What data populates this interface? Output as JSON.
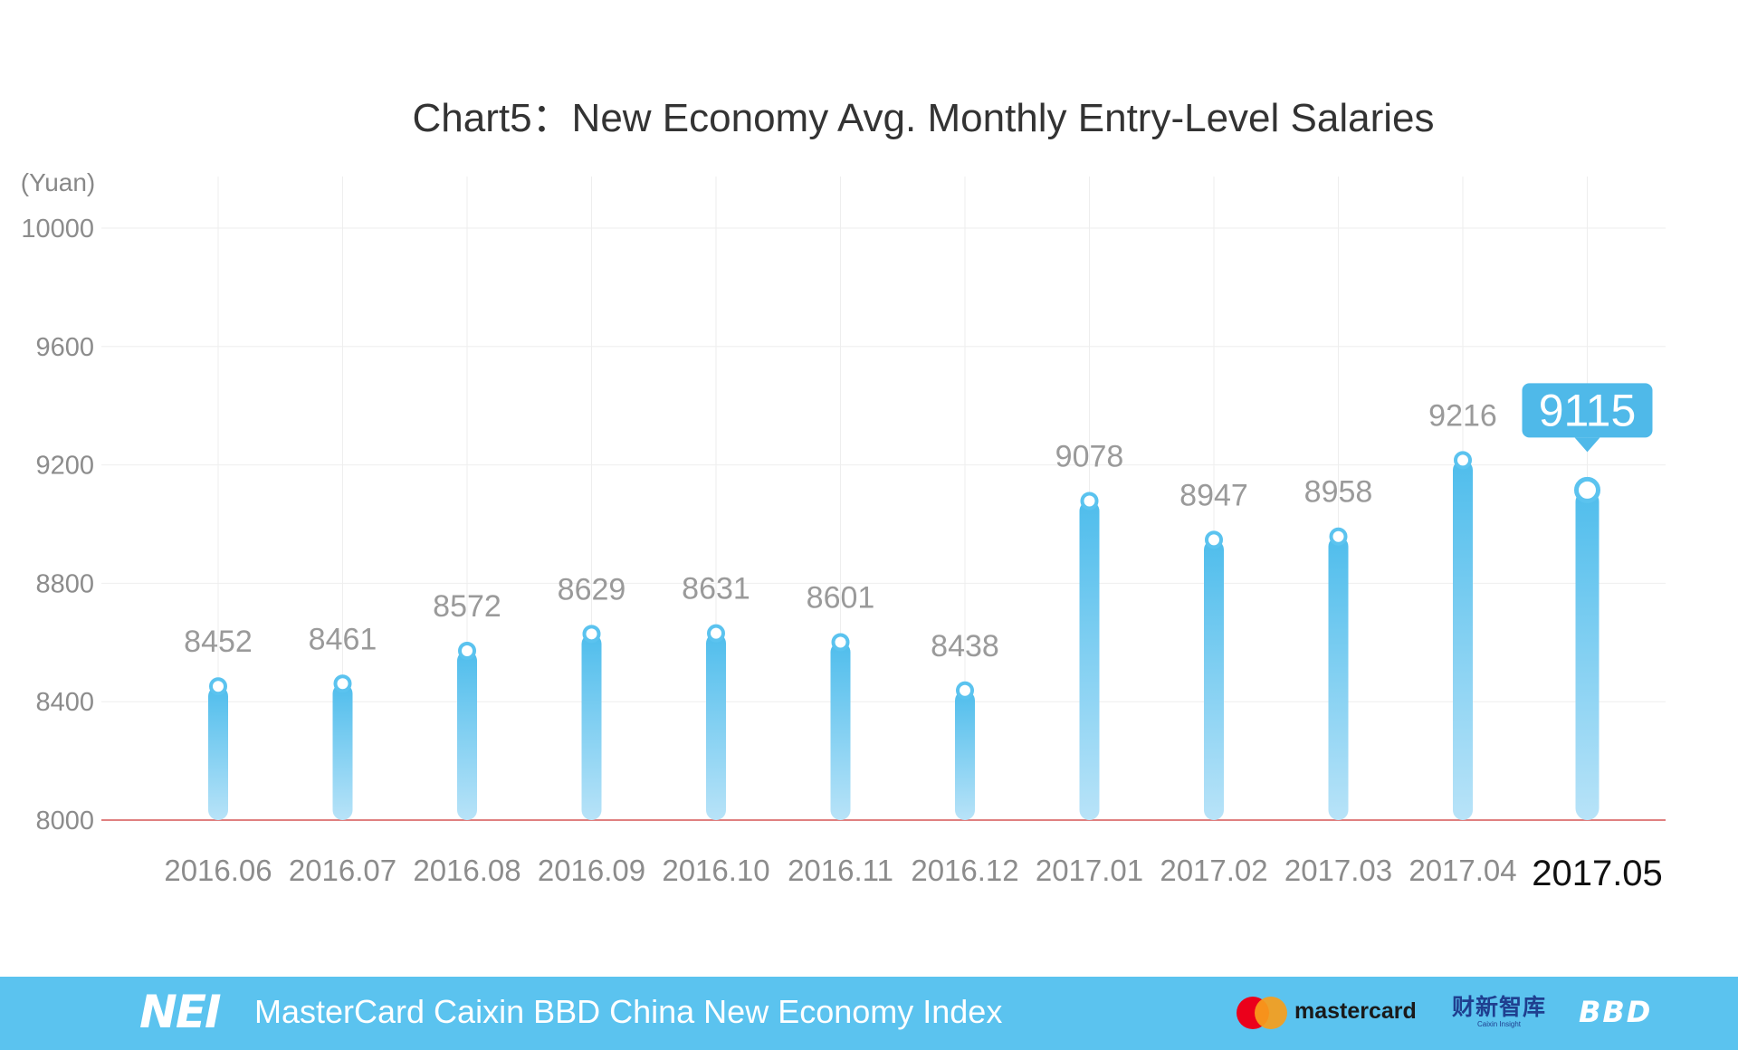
{
  "chart_data": {
    "type": "bar",
    "title": "Chart5：New Economy Avg. Monthly Entry-Level Salaries",
    "ylabel": "(Yuan)",
    "xlabel": "",
    "ylim": [
      8000,
      10000
    ],
    "yticks": [
      8000,
      8400,
      8800,
      9200,
      9600,
      10000
    ],
    "grid": true,
    "categories": [
      "2016.06",
      "2016.07",
      "2016.08",
      "2016.09",
      "2016.10",
      "2016.11",
      "2016.12",
      "2017.01",
      "2017.02",
      "2017.03",
      "2017.04",
      "2017.05"
    ],
    "values": [
      8452,
      8461,
      8572,
      8629,
      8631,
      8601,
      8438,
      9078,
      8947,
      8958,
      9216,
      9115
    ],
    "highlight_index": 11,
    "colors": {
      "bar_top": "#4fbdec",
      "bar_bottom": "#b8e3f8",
      "marker_stroke": "#5bc3ef",
      "baseline": "#e08080",
      "grid": "#eeeeee",
      "highlight_box": "#4fb9e9"
    }
  },
  "footer": {
    "logo": "NEI",
    "title": "MasterCard Caixin BBD China New Economy Index",
    "mastercard_label": "mastercard",
    "caixin_cn": "财新智库",
    "caixin_en": "Caixin Insight",
    "bbd_label": "BBD",
    "background": "#5bc3ef"
  }
}
